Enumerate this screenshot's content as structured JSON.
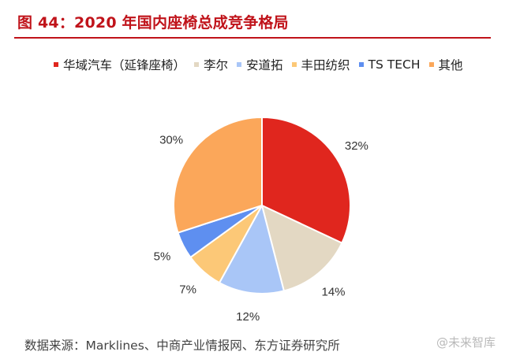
{
  "title": "图 44：2020 年国内座椅总成竞争格局",
  "source": "数据来源：Marklines、中商产业情报网、东方证券研究所",
  "watermark": "@未来智库",
  "chart_data": {
    "type": "pie",
    "title": "图 44：2020 年国内座椅总成竞争格局",
    "legend_position": "top",
    "start_angle_deg": 0,
    "direction": "clockwise",
    "slices": [
      {
        "label": "华域汽车（延锋座椅）",
        "value": 32,
        "display": "32%",
        "color": "#e0261e"
      },
      {
        "label": "李尔",
        "value": 14,
        "display": "14%",
        "color": "#e3d8c3"
      },
      {
        "label": "安道拓",
        "value": 12,
        "display": "12%",
        "color": "#a9c6f7"
      },
      {
        "label": "丰田纺织",
        "value": 7,
        "display": "7%",
        "color": "#fcc877"
      },
      {
        "label": "TS TECH",
        "value": 5,
        "display": "5%",
        "color": "#5e8ff0"
      },
      {
        "label": "其他",
        "value": 30,
        "display": "30%",
        "color": "#fba75a"
      }
    ]
  }
}
